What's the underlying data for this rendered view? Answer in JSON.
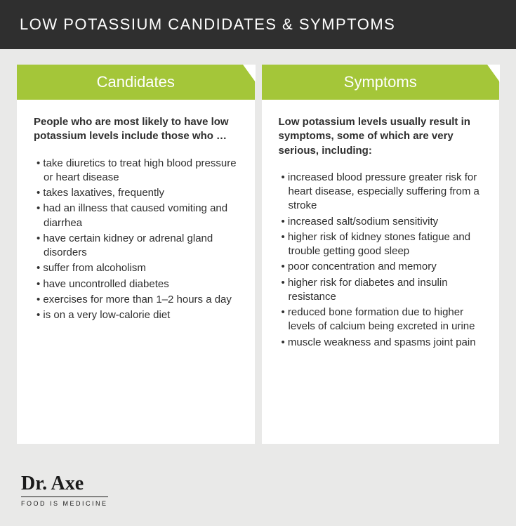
{
  "header": {
    "title": "LOW POTASSIUM CANDIDATES & SYMPTOMS"
  },
  "colors": {
    "page_bg": "#e9e9e8",
    "header_bg": "#2f2f2f",
    "header_text": "#ffffff",
    "card_bg": "#ffffff",
    "card_header_bg": "#a4c639",
    "card_header_text": "#ffffff",
    "body_text": "#2f2f2f"
  },
  "columns": [
    {
      "title": "Candidates",
      "intro": "People who are most likely to have low potassium levels include those who …",
      "items": [
        "take diuretics to treat high blood pressure or heart disease",
        "takes laxatives, frequently",
        "had an illness that caused vomiting and diarrhea",
        "have certain kidney or adrenal gland disorders",
        "suffer from alcoholism",
        "have uncontrolled diabetes",
        "exercises for more than 1–2 hours a day",
        "is on a very low-calorie diet"
      ]
    },
    {
      "title": "Symptoms",
      "intro": "Low potassium levels usually result in symptoms, some of which are very serious, including:",
      "items": [
        "increased blood pressure greater risk for heart disease, especially suffering from a stroke",
        "increased salt/sodium sensitivity",
        "higher risk of kidney stones fatigue and trouble getting good sleep",
        "poor concentration and memory",
        "higher risk for diabetes and insulin resistance",
        "reduced bone formation due to higher levels of calcium being excreted in urine",
        "muscle weakness and spasms joint pain"
      ]
    }
  ],
  "brand": {
    "name": "Dr. Axe",
    "tagline": "FOOD IS MEDICINE"
  }
}
